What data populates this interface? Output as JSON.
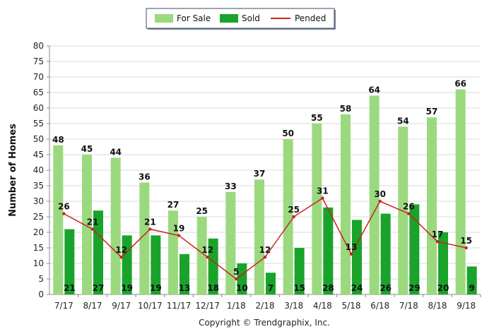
{
  "chart_data": {
    "type": "bar",
    "title": "",
    "xlabel": "",
    "ylabel": "Number of Homes",
    "ylim": [
      0,
      80
    ],
    "ytick_step": 5,
    "grid": true,
    "legend_position": "top-center",
    "categories": [
      "7/17",
      "8/17",
      "9/17",
      "10/17",
      "11/17",
      "12/17",
      "1/18",
      "2/18",
      "3/18",
      "4/18",
      "5/18",
      "6/18",
      "7/18",
      "8/18",
      "9/18"
    ],
    "series": [
      {
        "name": "For Sale",
        "kind": "bar",
        "color": "#9bd97f",
        "values": [
          48,
          45,
          44,
          36,
          27,
          25,
          33,
          37,
          50,
          55,
          58,
          64,
          54,
          57,
          66
        ]
      },
      {
        "name": "Sold",
        "kind": "bar",
        "color": "#1aa32b",
        "values": [
          21,
          27,
          19,
          19,
          13,
          18,
          10,
          7,
          15,
          28,
          24,
          26,
          29,
          20,
          9
        ]
      },
      {
        "name": "Pended",
        "kind": "line",
        "color": "#c8231f",
        "values": [
          26,
          21,
          12,
          21,
          19,
          12,
          5,
          12,
          25,
          31,
          13,
          30,
          26,
          17,
          15
        ]
      }
    ],
    "footer": "Copyright © Trendgraphix, Inc."
  }
}
